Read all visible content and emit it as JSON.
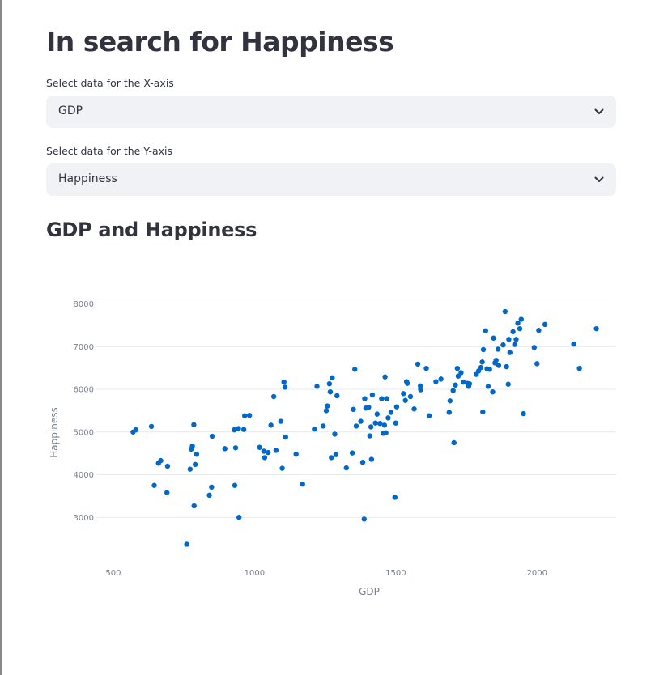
{
  "page": {
    "title": "In search for Happiness"
  },
  "x_select": {
    "label": "Select data for the X-axis",
    "value": "GDP",
    "icon": "chevron-down-icon"
  },
  "y_select": {
    "label": "Select data for the Y-axis",
    "value": "Happiness",
    "icon": "chevron-down-icon"
  },
  "chart_section": {
    "title": "GDP and Happiness"
  },
  "colors": {
    "point": "#0068C9",
    "grid": "#E6E9EF",
    "text": "#31333F",
    "select_bg": "#F0F2F6"
  },
  "chart_data": {
    "type": "scatter",
    "xlabel": "GDP",
    "ylabel": "Happiness",
    "xlim": [
      440,
      2280
    ],
    "ylim": [
      2000,
      8200
    ],
    "xticks": [
      500,
      1000,
      1500,
      2000
    ],
    "yticks": [
      3000,
      4000,
      5000,
      6000,
      7000,
      8000
    ],
    "grid": "horizontal",
    "points": [
      [
        570,
        5000
      ],
      [
        580,
        5050
      ],
      [
        635,
        5130
      ],
      [
        645,
        3750
      ],
      [
        660,
        4270
      ],
      [
        668,
        4330
      ],
      [
        690,
        3580
      ],
      [
        692,
        4200
      ],
      [
        760,
        2370
      ],
      [
        772,
        4130
      ],
      [
        776,
        4600
      ],
      [
        780,
        4670
      ],
      [
        785,
        5170
      ],
      [
        786,
        3270
      ],
      [
        790,
        4240
      ],
      [
        795,
        4480
      ],
      [
        840,
        3520
      ],
      [
        848,
        3710
      ],
      [
        850,
        4900
      ],
      [
        895,
        4610
      ],
      [
        928,
        5050
      ],
      [
        930,
        3750
      ],
      [
        933,
        4630
      ],
      [
        943,
        5080
      ],
      [
        945,
        3000
      ],
      [
        962,
        5060
      ],
      [
        965,
        5380
      ],
      [
        982,
        5390
      ],
      [
        1018,
        4640
      ],
      [
        1033,
        4550
      ],
      [
        1036,
        4400
      ],
      [
        1048,
        4520
      ],
      [
        1058,
        5160
      ],
      [
        1068,
        5830
      ],
      [
        1076,
        4570
      ],
      [
        1093,
        5250
      ],
      [
        1098,
        4150
      ],
      [
        1104,
        6170
      ],
      [
        1108,
        6050
      ],
      [
        1110,
        4880
      ],
      [
        1147,
        4480
      ],
      [
        1170,
        3780
      ],
      [
        1212,
        5070
      ],
      [
        1221,
        6070
      ],
      [
        1243,
        5140
      ],
      [
        1254,
        5500
      ],
      [
        1258,
        5610
      ],
      [
        1265,
        6130
      ],
      [
        1268,
        5940
      ],
      [
        1272,
        4400
      ],
      [
        1275,
        6270
      ],
      [
        1284,
        4950
      ],
      [
        1288,
        4470
      ],
      [
        1292,
        5850
      ],
      [
        1325,
        4160
      ],
      [
        1346,
        4510
      ],
      [
        1350,
        5530
      ],
      [
        1355,
        6470
      ],
      [
        1360,
        5140
      ],
      [
        1376,
        5250
      ],
      [
        1383,
        4290
      ],
      [
        1388,
        2960
      ],
      [
        1390,
        5780
      ],
      [
        1394,
        5560
      ],
      [
        1404,
        5580
      ],
      [
        1408,
        4910
      ],
      [
        1412,
        5120
      ],
      [
        1414,
        4360
      ],
      [
        1417,
        5870
      ],
      [
        1428,
        5210
      ],
      [
        1434,
        5420
      ],
      [
        1444,
        5200
      ],
      [
        1450,
        5780
      ],
      [
        1456,
        4970
      ],
      [
        1460,
        5160
      ],
      [
        1462,
        6290
      ],
      [
        1465,
        4980
      ],
      [
        1468,
        5780
      ],
      [
        1473,
        5330
      ],
      [
        1483,
        5460
      ],
      [
        1497,
        3470
      ],
      [
        1500,
        5210
      ],
      [
        1503,
        5590
      ],
      [
        1527,
        5900
      ],
      [
        1534,
        5740
      ],
      [
        1538,
        6180
      ],
      [
        1541,
        6140
      ],
      [
        1552,
        5830
      ],
      [
        1565,
        5540
      ],
      [
        1578,
        6590
      ],
      [
        1587,
        6080
      ],
      [
        1588,
        5990
      ],
      [
        1608,
        6490
      ],
      [
        1618,
        5380
      ],
      [
        1642,
        6180
      ],
      [
        1660,
        6240
      ],
      [
        1689,
        5460
      ],
      [
        1692,
        5730
      ],
      [
        1703,
        5970
      ],
      [
        1706,
        4750
      ],
      [
        1711,
        6100
      ],
      [
        1718,
        6490
      ],
      [
        1721,
        6310
      ],
      [
        1731,
        6390
      ],
      [
        1739,
        6170
      ],
      [
        1754,
        6140
      ],
      [
        1758,
        6070
      ],
      [
        1761,
        6130
      ],
      [
        1785,
        6350
      ],
      [
        1793,
        6430
      ],
      [
        1801,
        6510
      ],
      [
        1806,
        6640
      ],
      [
        1808,
        5470
      ],
      [
        1810,
        6930
      ],
      [
        1818,
        7370
      ],
      [
        1823,
        6480
      ],
      [
        1827,
        6070
      ],
      [
        1832,
        6470
      ],
      [
        1843,
        5940
      ],
      [
        1846,
        7200
      ],
      [
        1851,
        6620
      ],
      [
        1855,
        6680
      ],
      [
        1862,
        6940
      ],
      [
        1864,
        6560
      ],
      [
        1880,
        7040
      ],
      [
        1887,
        7820
      ],
      [
        1892,
        6530
      ],
      [
        1898,
        6120
      ],
      [
        1900,
        7170
      ],
      [
        1904,
        6860
      ],
      [
        1915,
        7350
      ],
      [
        1921,
        7050
      ],
      [
        1926,
        7170
      ],
      [
        1932,
        7550
      ],
      [
        1939,
        7420
      ],
      [
        1944,
        7640
      ],
      [
        1952,
        5430
      ],
      [
        1990,
        6980
      ],
      [
        2000,
        6600
      ],
      [
        2006,
        7380
      ],
      [
        2028,
        7520
      ],
      [
        2130,
        7060
      ],
      [
        2150,
        6490
      ],
      [
        2210,
        7420
      ]
    ]
  }
}
